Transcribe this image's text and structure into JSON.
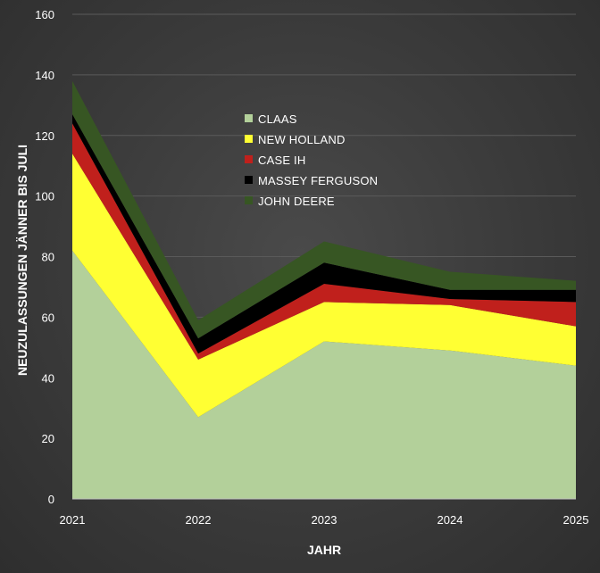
{
  "chart_data": {
    "type": "area",
    "stacked": true,
    "x": [
      "2021",
      "2022",
      "2023",
      "2024",
      "2025"
    ],
    "series": [
      {
        "name": "CLAAS",
        "color": "#b3d09a",
        "values": [
          82,
          27,
          52,
          49,
          44
        ]
      },
      {
        "name": "NEW HOLLAND",
        "color": "#ffff33",
        "values": [
          32,
          19,
          13,
          15,
          13
        ]
      },
      {
        "name": "CASE IH",
        "color": "#c0201c",
        "values": [
          10,
          2,
          6,
          2,
          8
        ]
      },
      {
        "name": "MASSEY FERGUSON",
        "color": "#000000",
        "values": [
          3,
          5,
          7,
          3,
          4
        ]
      },
      {
        "name": "JOHN DEERE",
        "color": "#375623",
        "values": [
          11,
          6,
          7,
          6,
          3
        ]
      }
    ],
    "xlabel": "JAHR",
    "ylabel": "NEUZULASSUNGEN JÄNNER BIS JULI",
    "ylim": [
      0,
      160
    ],
    "yticks": [
      0,
      20,
      40,
      60,
      80,
      100,
      120,
      140,
      160
    ],
    "grid": true,
    "legend_position": "upper-center"
  }
}
